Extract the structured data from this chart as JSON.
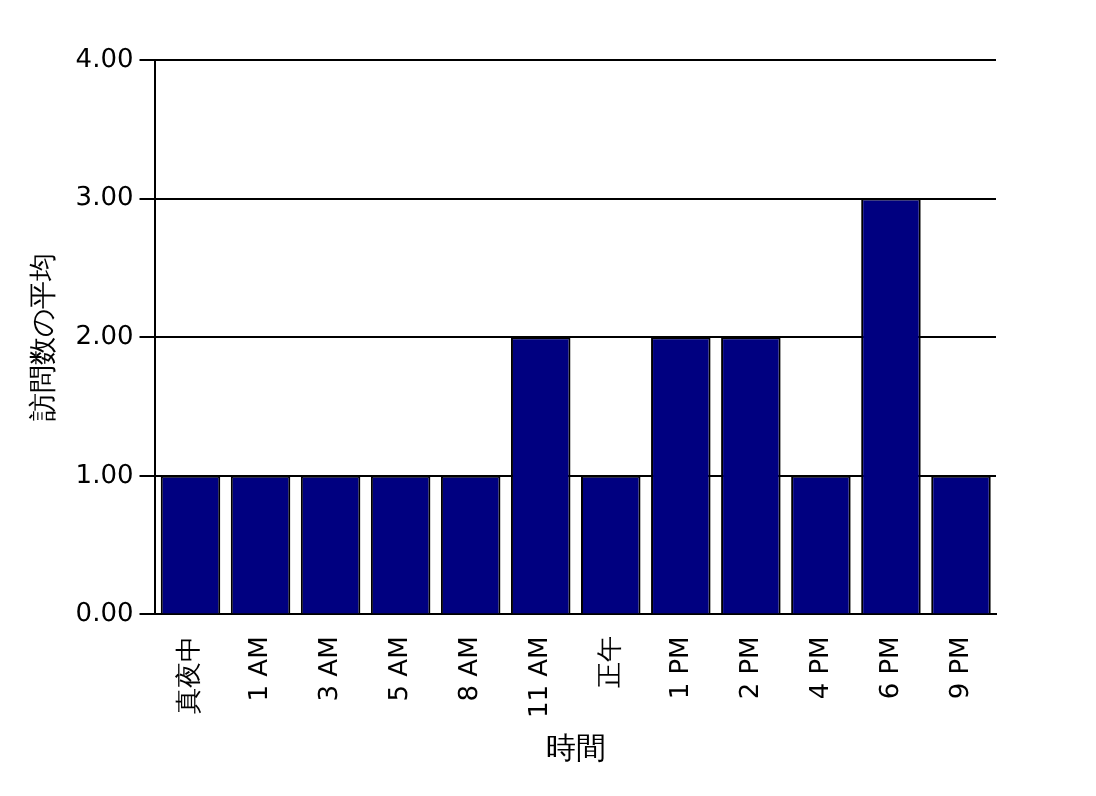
{
  "chart_data": {
    "type": "bar",
    "xlabel": "時間",
    "ylabel": "訪問数の平均",
    "categories": [
      "真夜中",
      "1 AM",
      "3 AM",
      "5 AM",
      "8 AM",
      "11 AM",
      "正午",
      "1 PM",
      "2 PM",
      "4 PM",
      "6 PM",
      "9 PM"
    ],
    "values": [
      1,
      1,
      1,
      1,
      1,
      2,
      1,
      2,
      2,
      1,
      3,
      1
    ],
    "color": "#000080",
    "ylim": [
      0,
      4
    ],
    "yticks": [
      {
        "value": 0,
        "label": "0.00"
      },
      {
        "value": 1,
        "label": "1.00"
      },
      {
        "value": 2,
        "label": "2.00"
      },
      {
        "value": 3,
        "label": "3.00"
      },
      {
        "value": 4,
        "label": "4.00"
      }
    ],
    "grid": "y",
    "legend": false
  }
}
